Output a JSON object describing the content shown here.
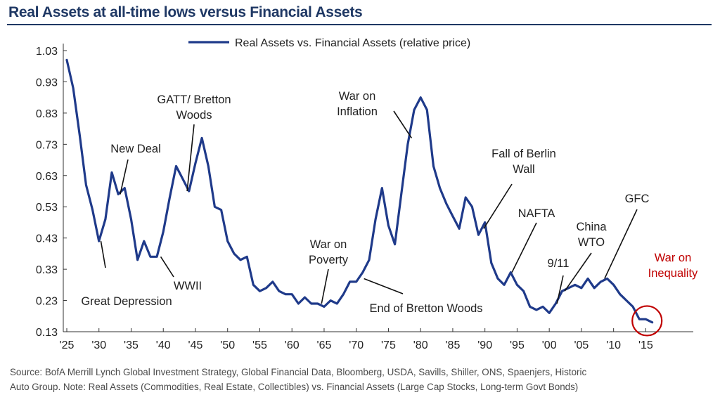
{
  "title": "Real Assets at all-time lows versus Financial Assets",
  "source": {
    "line1": "Source:  BofA Merrill Lynch Global Investment Strategy, Global Financial Data, Bloomberg, USDA, Savills, Shiller, ONS, Spaenjers, Historic",
    "line2": "Auto Group. Note:  Real Assets (Commodities, Real Estate, Collectibles) vs. Financial Assets (Large Cap Stocks, Long-term Govt Bonds)"
  },
  "colors": {
    "line": "#1f3a8a",
    "title": "#1f3864",
    "highlight": "#c00000",
    "text": "#222222"
  },
  "chart_data": {
    "type": "line",
    "legend": "top-center",
    "grid": false,
    "xlim": [
      1925,
      2017
    ],
    "ylim": [
      0.13,
      1.03
    ],
    "yticks": [
      1.03,
      0.93,
      0.83,
      0.73,
      0.63,
      0.53,
      0.43,
      0.33,
      0.23,
      0.13
    ],
    "ytick_labels": [
      "1.03",
      "0.93",
      "0.83",
      "0.73",
      "0.63",
      "0.53",
      "0.43",
      "0.33",
      "0.23",
      "0.13"
    ],
    "xticks": [
      1925,
      1930,
      1935,
      1940,
      1945,
      1950,
      1955,
      1960,
      1965,
      1970,
      1975,
      1980,
      1985,
      1990,
      1995,
      2000,
      2005,
      2010,
      2015
    ],
    "xtick_labels": [
      "'25",
      "'30",
      "'35",
      "'40",
      "'45",
      "'50",
      "'55",
      "'60",
      "'65",
      "'70",
      "'75",
      "'80",
      "'85",
      "'90",
      "'95",
      "'00",
      "'05",
      "'10",
      "'15"
    ],
    "series": [
      {
        "name": "Real Assets vs. Financial Assets (relative price)",
        "x": [
          1925,
          1926,
          1927,
          1928,
          1929,
          1930,
          1931,
          1932,
          1933,
          1934,
          1935,
          1936,
          1937,
          1938,
          1939,
          1940,
          1941,
          1942,
          1943,
          1944,
          1945,
          1946,
          1947,
          1948,
          1949,
          1950,
          1951,
          1952,
          1953,
          1954,
          1955,
          1956,
          1957,
          1958,
          1959,
          1960,
          1961,
          1962,
          1963,
          1964,
          1965,
          1966,
          1967,
          1968,
          1969,
          1970,
          1971,
          1972,
          1973,
          1974,
          1975,
          1976,
          1977,
          1978,
          1979,
          1980,
          1981,
          1982,
          1983,
          1984,
          1985,
          1986,
          1987,
          1988,
          1989,
          1990,
          1991,
          1992,
          1993,
          1994,
          1995,
          1996,
          1997,
          1998,
          1999,
          2000,
          2001,
          2002,
          2003,
          2004,
          2005,
          2006,
          2007,
          2008,
          2009,
          2010,
          2011,
          2012,
          2013,
          2014,
          2015,
          2016
        ],
        "y": [
          1.0,
          0.91,
          0.76,
          0.6,
          0.52,
          0.42,
          0.49,
          0.64,
          0.57,
          0.59,
          0.49,
          0.36,
          0.42,
          0.37,
          0.37,
          0.45,
          0.56,
          0.66,
          0.62,
          0.58,
          0.67,
          0.75,
          0.66,
          0.53,
          0.52,
          0.42,
          0.38,
          0.36,
          0.37,
          0.28,
          0.26,
          0.27,
          0.29,
          0.26,
          0.25,
          0.25,
          0.22,
          0.24,
          0.22,
          0.22,
          0.21,
          0.23,
          0.22,
          0.25,
          0.29,
          0.29,
          0.32,
          0.36,
          0.49,
          0.59,
          0.47,
          0.41,
          0.57,
          0.73,
          0.84,
          0.88,
          0.84,
          0.66,
          0.59,
          0.54,
          0.5,
          0.46,
          0.56,
          0.53,
          0.44,
          0.48,
          0.35,
          0.3,
          0.28,
          0.32,
          0.28,
          0.26,
          0.21,
          0.2,
          0.21,
          0.19,
          0.22,
          0.26,
          0.27,
          0.28,
          0.27,
          0.3,
          0.27,
          0.29,
          0.3,
          0.28,
          0.25,
          0.23,
          0.21,
          0.17,
          0.17,
          0.16
        ]
      }
    ],
    "annotations": [
      {
        "id": "great-depression",
        "lines": [
          "Great Depression"
        ],
        "pointer": [
          1930.3,
          0.42
        ]
      },
      {
        "id": "new-deal",
        "lines": [
          "New Deal"
        ],
        "pointer": [
          1933.3,
          0.57
        ]
      },
      {
        "id": "wwii",
        "lines": [
          "WWII"
        ],
        "pointer": [
          1939.6,
          0.37
        ]
      },
      {
        "id": "gatt",
        "lines": [
          "GATT/ Bretton",
          "Woods"
        ],
        "pointer": [
          1943.7,
          0.58
        ]
      },
      {
        "id": "war-on-poverty",
        "lines": [
          "War on",
          "Poverty"
        ],
        "pointer": [
          1964.6,
          0.22
        ]
      },
      {
        "id": "end-bretton-woods",
        "lines": [
          "End of Bretton Woods"
        ],
        "pointer": [
          1971.2,
          0.3
        ]
      },
      {
        "id": "war-on-inflation",
        "lines": [
          "War on",
          "Inflation"
        ],
        "pointer": [
          1978.6,
          0.75
        ]
      },
      {
        "id": "fall-berlin-wall",
        "lines": [
          "Fall of Berlin",
          "Wall"
        ],
        "pointer": [
          1989.8,
          0.46
        ]
      },
      {
        "id": "nafta",
        "lines": [
          "NAFTA"
        ],
        "pointer": [
          1994.2,
          0.32
        ]
      },
      {
        "id": "nine-eleven",
        "lines": [
          "9/11"
        ],
        "pointer": [
          2001.2,
          0.22
        ]
      },
      {
        "id": "china-wto",
        "lines": [
          "China",
          "WTO"
        ],
        "pointer": [
          2002.4,
          0.26
        ]
      },
      {
        "id": "gfc",
        "lines": [
          "GFC"
        ],
        "pointer": [
          2008.6,
          0.3
        ]
      },
      {
        "id": "war-on-inequality",
        "lines": [
          "War on",
          "Inequality"
        ],
        "pointer": null,
        "color": "#c00000",
        "highlight_circle": [
          2015.2,
          0.165
        ]
      }
    ]
  }
}
